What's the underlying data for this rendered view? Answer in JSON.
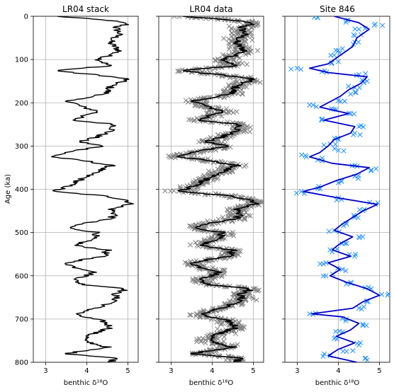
{
  "figure": {
    "ylabel": "Age (ka)"
  },
  "chart_data": [
    {
      "type": "line",
      "title": "LR04 stack",
      "xlabel": "benthic δ¹⁸O",
      "ylabel": "Age (ka)",
      "xlim": [
        2.7,
        5.25
      ],
      "ylim": [
        800,
        0
      ],
      "xticks": [
        3,
        4,
        5
      ],
      "yticks": [
        0,
        100,
        200,
        300,
        400,
        500,
        600,
        700,
        800
      ],
      "grid": true,
      "series": [
        {
          "color": "#000000",
          "style": "line",
          "age": [
            0,
            10,
            18,
            25,
            40,
            60,
            80,
            100,
            115,
            125,
            130,
            135,
            145,
            160,
            180,
            195,
            210,
            220,
            240,
            250,
            265,
            280,
            290,
            300,
            315,
            325,
            335,
            345,
            360,
            380,
            395,
            405,
            415,
            425,
            435,
            445,
            460,
            470,
            480,
            490,
            500,
            515,
            530,
            540,
            555,
            570,
            580,
            590,
            600,
            610,
            620,
            630,
            640,
            660,
            675,
            690,
            705,
            720,
            735,
            750,
            765,
            780,
            790,
            800
          ],
          "d18O": [
            3.25,
            4.6,
            5.0,
            4.7,
            4.8,
            4.55,
            4.8,
            4.3,
            4.55,
            3.25,
            3.6,
            4.2,
            5.0,
            4.6,
            4.45,
            3.55,
            3.9,
            4.3,
            3.6,
            4.7,
            4.6,
            4.2,
            3.8,
            4.4,
            3.5,
            3.15,
            4.0,
            4.6,
            4.2,
            3.8,
            3.5,
            3.15,
            4.4,
            5.0,
            5.05,
            4.6,
            4.7,
            4.5,
            3.8,
            3.55,
            4.3,
            4.1,
            3.7,
            4.5,
            4.4,
            3.5,
            3.7,
            4.2,
            4.0,
            3.7,
            3.9,
            5.0,
            4.7,
            4.7,
            4.2,
            3.7,
            4.4,
            4.6,
            4.1,
            3.9,
            4.5,
            3.5,
            4.7,
            4.6
          ]
        }
      ]
    },
    {
      "type": "scatter",
      "title": "LR04 data",
      "xlabel": "benthic δ¹⁸O",
      "xlim": [
        2.7,
        5.25
      ],
      "ylim": [
        800,
        0
      ],
      "xticks": [
        3,
        4,
        5
      ],
      "yticks": [
        0,
        100,
        200,
        300,
        400,
        500,
        600,
        700,
        800
      ],
      "grid": true,
      "series": [
        {
          "color": "#808080",
          "style": "x-markers",
          "note_values": "scatter of individual benthic measurements around the stack, spread ± about 0.5 per mil"
        },
        {
          "color": "#000000",
          "style": "line",
          "same_as": "LR04 stack"
        }
      ]
    },
    {
      "type": "scatter",
      "title": "Site 846",
      "xlabel": "benthic δ¹⁸O",
      "xlim": [
        2.7,
        5.25
      ],
      "ylim": [
        800,
        0
      ],
      "xticks": [
        3,
        4,
        5
      ],
      "yticks": [
        0,
        100,
        200,
        300,
        400,
        500,
        600,
        700,
        800
      ],
      "grid": true,
      "series": [
        {
          "color": "#1e90ff",
          "style": "x-markers",
          "age": [
            3,
            10,
            18,
            30,
            45,
            60,
            75,
            90,
            105,
            120,
            128,
            135,
            150,
            165,
            180,
            195,
            205,
            215,
            225,
            240,
            255,
            270,
            285,
            295,
            310,
            322,
            332,
            345,
            355,
            370,
            385,
            398,
            405,
            420,
            435,
            450,
            465,
            480,
            495,
            510,
            525,
            540,
            555,
            570,
            585,
            600,
            615,
            630,
            645,
            660,
            675,
            688,
            700,
            715,
            730,
            745,
            760,
            775,
            785,
            795
          ],
          "d18O": [
            3.5,
            4.2,
            4.9,
            4.5,
            4.4,
            4.4,
            4.1,
            3.9,
            4.0,
            3.0,
            3.6,
            4.5,
            4.7,
            4.4,
            4.3,
            4.0,
            3.3,
            3.9,
            4.3,
            3.6,
            4.5,
            4.4,
            4.0,
            3.8,
            4.0,
            3.2,
            3.5,
            4.4,
            4.8,
            4.4,
            4.0,
            3.5,
            3.1,
            4.0,
            4.9,
            4.6,
            4.4,
            4.2,
            3.9,
            4.5,
            4.2,
            3.8,
            4.4,
            3.7,
            4.1,
            3.7,
            4.3,
            4.8,
            5.2,
            4.7,
            4.5,
            3.3,
            4.2,
            4.6,
            4.1,
            3.9,
            4.5,
            4.2,
            3.8,
            4.7
          ]
        },
        {
          "color": "#0000cc",
          "style": "line",
          "age": [
            0,
            15,
            30,
            50,
            70,
            90,
            110,
            120,
            130,
            140,
            155,
            170,
            185,
            200,
            210,
            225,
            240,
            255,
            270,
            285,
            300,
            315,
            325,
            340,
            350,
            365,
            380,
            395,
            405,
            420,
            435,
            450,
            465,
            480,
            495,
            510,
            525,
            540,
            555,
            570,
            585,
            600,
            615,
            630,
            645,
            660,
            675,
            688,
            695,
            710,
            725,
            740,
            755,
            770,
            785,
            800
          ],
          "d18O": [
            3.9,
            4.5,
            4.75,
            4.45,
            4.35,
            4.05,
            3.75,
            3.3,
            3.75,
            4.7,
            4.55,
            4.25,
            4.05,
            3.75,
            3.55,
            4.25,
            3.65,
            4.4,
            4.3,
            3.9,
            3.75,
            3.55,
            3.3,
            3.85,
            4.75,
            4.45,
            3.95,
            3.55,
            3.15,
            4.0,
            4.95,
            4.6,
            4.35,
            4.1,
            3.9,
            4.35,
            4.05,
            3.85,
            4.3,
            3.75,
            4.05,
            3.8,
            4.2,
            4.7,
            5.0,
            4.6,
            4.35,
            3.35,
            4.1,
            4.5,
            4.3,
            3.95,
            4.4,
            4.0,
            3.75,
            4.45
          ]
        }
      ]
    }
  ]
}
